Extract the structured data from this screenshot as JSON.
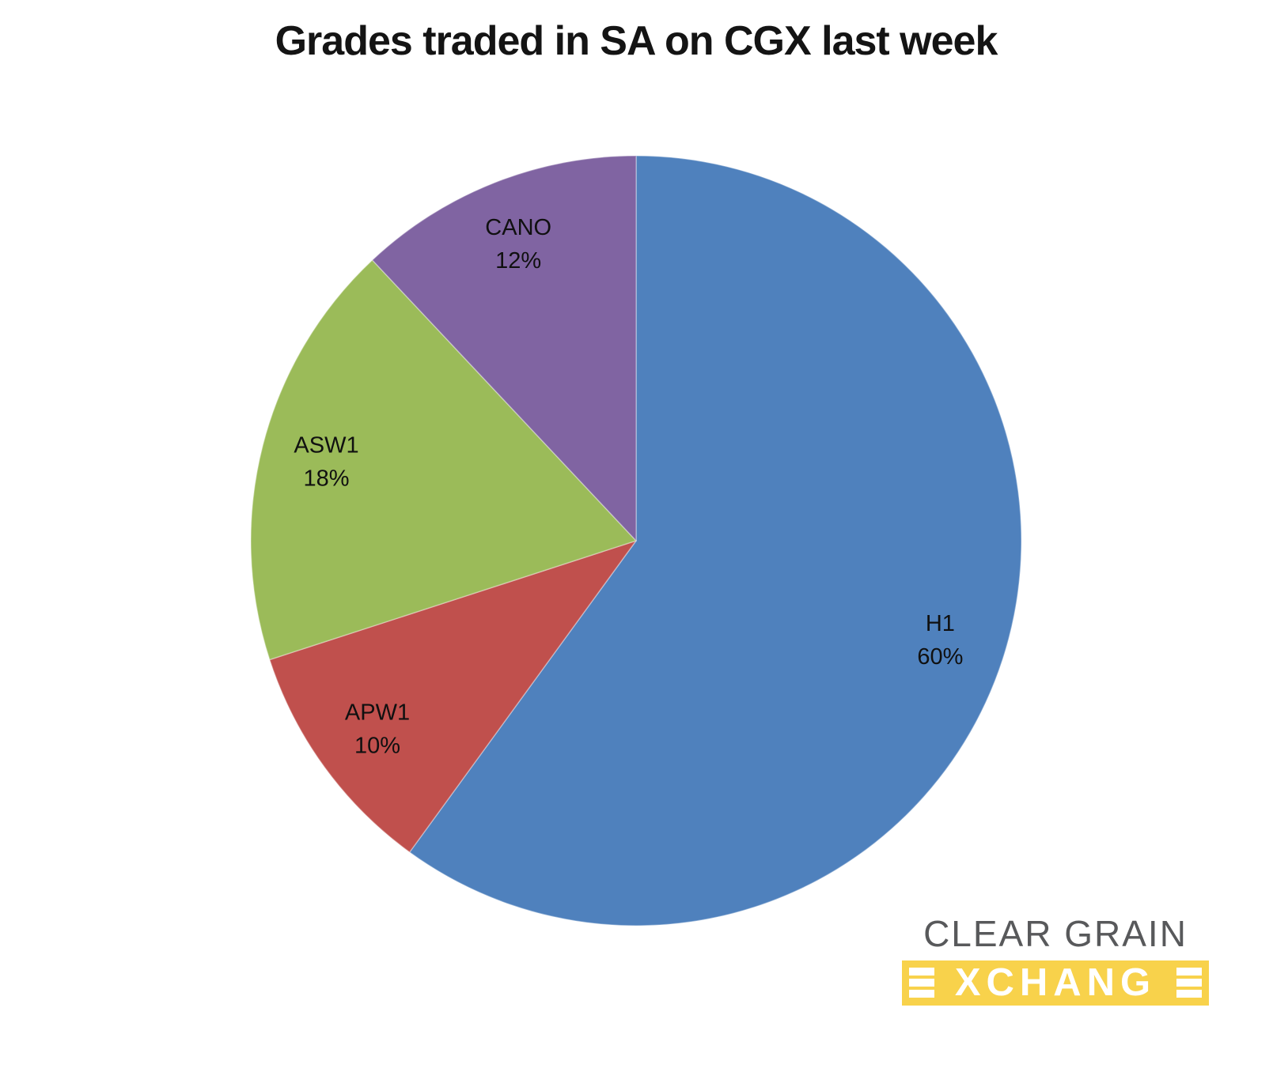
{
  "title": "Grades traded in SA on CGX last week",
  "chart_data": {
    "type": "pie",
    "title": "Grades traded in SA on CGX last week",
    "start_angle_deg": 0,
    "direction": "clockwise",
    "legend": "none",
    "label_placement": "inside",
    "label_format": "{label} {value}%",
    "slices": [
      {
        "label": "H1",
        "value": 60,
        "color": "#4F81BD"
      },
      {
        "label": "APW1",
        "value": 10,
        "color": "#C0504D"
      },
      {
        "label": "ASW1",
        "value": 18,
        "color": "#9BBB59"
      },
      {
        "label": "CANO",
        "value": 12,
        "color": "#8064A2"
      }
    ]
  },
  "logo": {
    "line1": "CLEAR GRAIN",
    "line2": "EXCHANGE",
    "bar_color": "#F8D24B",
    "text_color": "#58595B"
  }
}
